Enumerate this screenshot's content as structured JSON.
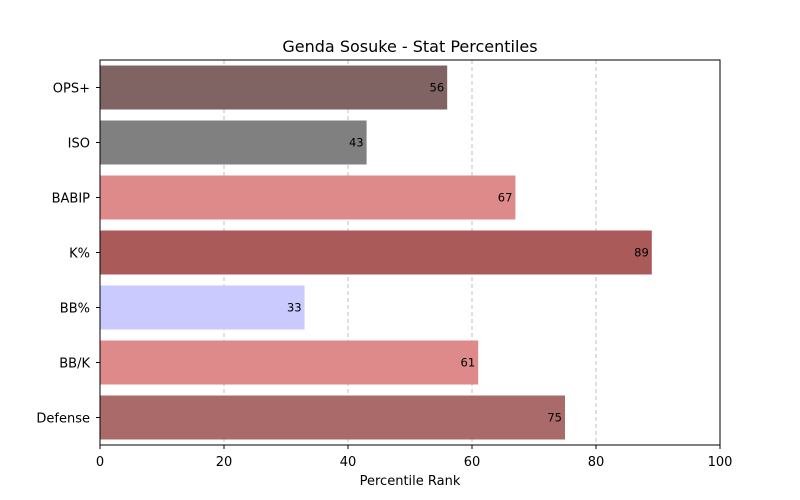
{
  "chart_data": {
    "type": "bar",
    "orientation": "horizontal",
    "title": "Genda Sosuke - Stat Percentiles",
    "xlabel": "Percentile Rank",
    "ylabel": "",
    "xlim": [
      0,
      100
    ],
    "xticks": [
      0,
      20,
      40,
      60,
      80,
      100
    ],
    "grid": "x-dashed",
    "categories": [
      "OPS+",
      "ISO",
      "BABIP",
      "K%",
      "BB%",
      "BB/K",
      "Defense"
    ],
    "values": [
      56,
      43,
      67,
      89,
      33,
      61,
      75
    ],
    "colors": [
      "#806464",
      "#808080",
      "#de8a8a",
      "#ab5a5a",
      "#cacaff",
      "#de8a8a",
      "#ab6a6a"
    ]
  }
}
